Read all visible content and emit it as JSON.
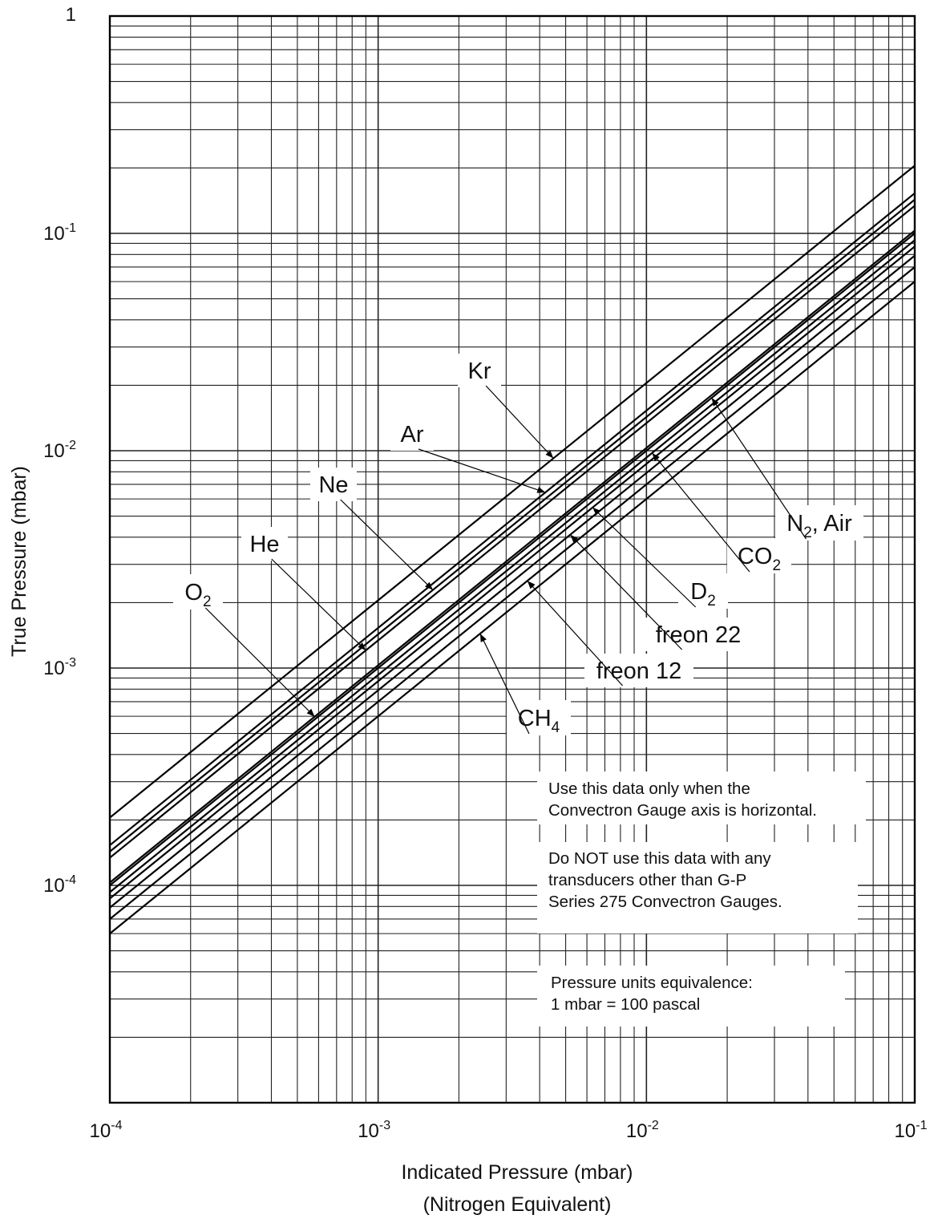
{
  "chart_data": {
    "type": "line",
    "title": "",
    "xlabel": "Indicated Pressure (mbar)",
    "xlabel_sub": "(Nitrogen Equivalent)",
    "ylabel": "True Pressure (mbar)",
    "x_scale": "log",
    "y_scale": "log",
    "xlim": [
      0.0001,
      0.1
    ],
    "ylim": [
      1e-05,
      1
    ],
    "grid": true,
    "x_ticks": [
      {
        "base": "10",
        "exp": "-4"
      },
      {
        "base": "10",
        "exp": "-3"
      },
      {
        "base": "10",
        "exp": "-2"
      },
      {
        "base": "10",
        "exp": "-1"
      }
    ],
    "y_ticks": [
      {
        "value": 1,
        "base": "1",
        "exp": ""
      },
      {
        "value": 0.1,
        "base": "10",
        "exp": "-1"
      },
      {
        "value": 0.01,
        "base": "10",
        "exp": "-2"
      },
      {
        "value": 0.001,
        "base": "10",
        "exp": "-3"
      },
      {
        "value": 0.0001,
        "base": "10",
        "exp": "-4"
      }
    ],
    "series": [
      {
        "name": "Kr",
        "label": {
          "main": "Kr",
          "sub": "",
          "rest": ""
        },
        "x": [
          0.0001,
          0.1
        ],
        "y": [
          0.000205,
          0.205
        ],
        "pointer_x": 0.0045
      },
      {
        "name": "Ar",
        "label": {
          "main": "Ar",
          "sub": "",
          "rest": ""
        },
        "x": [
          0.0001,
          0.1
        ],
        "y": [
          0.000153,
          0.153
        ],
        "pointer_x": 0.0042
      },
      {
        "name": "Ne",
        "label": {
          "main": "Ne",
          "sub": "",
          "rest": ""
        },
        "x": [
          0.0001,
          0.1
        ],
        "y": [
          0.000143,
          0.143
        ],
        "pointer_x": 0.0016
      },
      {
        "name": "He",
        "label": {
          "main": "He",
          "sub": "",
          "rest": ""
        },
        "x": [
          0.0001,
          0.1
        ],
        "y": [
          0.000134,
          0.134
        ],
        "pointer_x": 0.0009
      },
      {
        "name": "O2",
        "label": {
          "main": "O",
          "sub": "2",
          "rest": ""
        },
        "x": [
          0.0001,
          0.1
        ],
        "y": [
          0.000103,
          0.103
        ],
        "pointer_x": 0.00058
      },
      {
        "name": "N2, Air",
        "label": {
          "main": "N",
          "sub": "2",
          "rest": ", Air"
        },
        "x": [
          0.0001,
          0.1
        ],
        "y": [
          0.0001,
          0.1
        ],
        "pointer_x": 0.0175
      },
      {
        "name": "CO2",
        "label": {
          "main": "CO",
          "sub": "2",
          "rest": ""
        },
        "x": [
          0.0001,
          0.1
        ],
        "y": [
          9.3e-05,
          0.093
        ],
        "pointer_x": 0.0105
      },
      {
        "name": "D2",
        "label": {
          "main": "D",
          "sub": "2",
          "rest": ""
        },
        "x": [
          0.0001,
          0.1
        ],
        "y": [
          8.7e-05,
          0.087
        ],
        "pointer_x": 0.0063
      },
      {
        "name": "freon 22",
        "label": {
          "main": "freon 22",
          "sub": "",
          "rest": ""
        },
        "x": [
          0.0001,
          0.1
        ],
        "y": [
          7.9e-05,
          0.079
        ],
        "pointer_x": 0.0052
      },
      {
        "name": "freon 12",
        "label": {
          "main": "freon 12",
          "sub": "",
          "rest": ""
        },
        "x": [
          0.0001,
          0.1
        ],
        "y": [
          7e-05,
          0.07
        ],
        "pointer_x": 0.0036
      },
      {
        "name": "CH4",
        "label": {
          "main": "CH",
          "sub": "4",
          "rest": ""
        },
        "x": [
          0.0001,
          0.1
        ],
        "y": [
          6e-05,
          0.06
        ],
        "pointer_x": 0.0024
      }
    ],
    "annotations": {
      "note1": [
        "Use this data only when the",
        "Convectron Gauge axis is horizontal."
      ],
      "note2": [
        "Do NOT use this data with any",
        "transducers other than G-P",
        "Series 275 Convectron Gauges."
      ],
      "note3": [
        "Pressure units equivalence:",
        "1 mbar = 100 pascal"
      ]
    }
  }
}
